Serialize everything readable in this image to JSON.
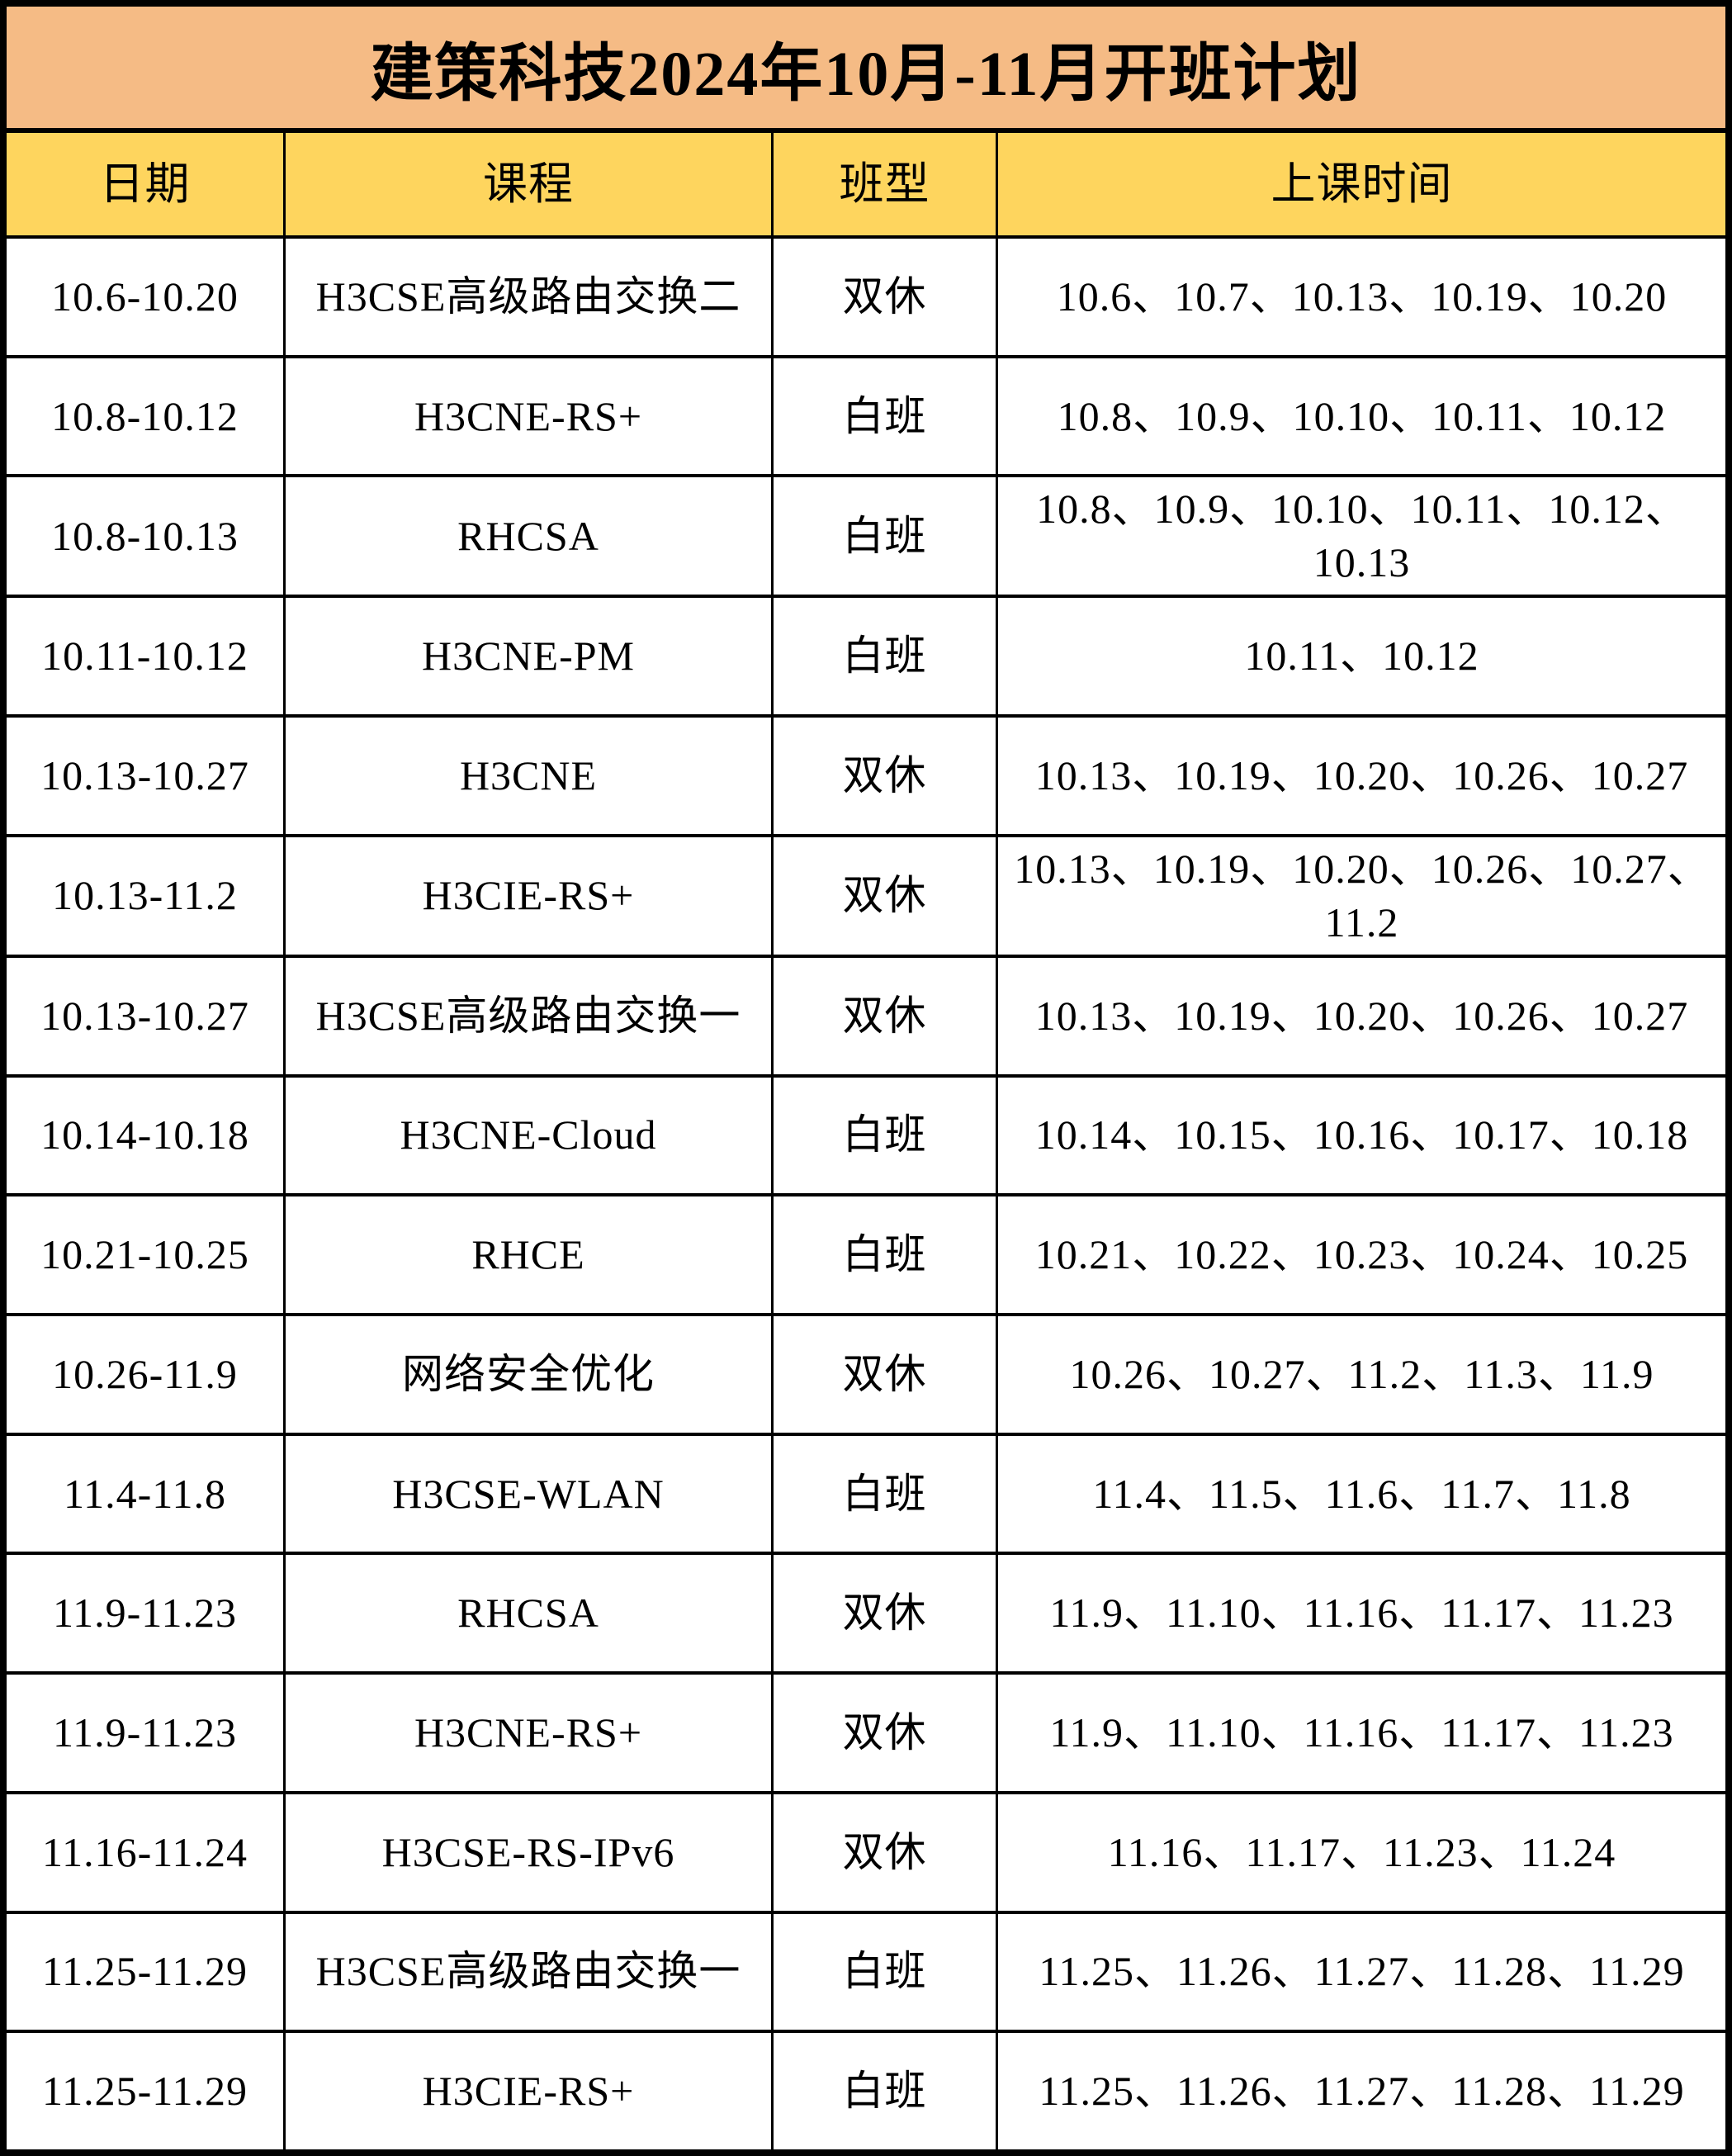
{
  "title": "建策科技2024年10月-11月开班计划",
  "columns": [
    "日期",
    "课程",
    "班型",
    "上课时间"
  ],
  "rows": [
    {
      "date": "10.6-10.20",
      "course": "H3CSE高级路由交换二",
      "type": "双休",
      "times": "10.6、10.7、10.13、10.19、10.20"
    },
    {
      "date": "10.8-10.12",
      "course": "H3CNE-RS+",
      "type": "白班",
      "times": "10.8、10.9、10.10、10.11、10.12"
    },
    {
      "date": "10.8-10.13",
      "course": "RHCSA",
      "type": "白班",
      "times": "10.8、10.9、10.10、10.11、10.12、10.13"
    },
    {
      "date": "10.11-10.12",
      "course": "H3CNE-PM",
      "type": "白班",
      "times": "10.11、10.12"
    },
    {
      "date": "10.13-10.27",
      "course": "H3CNE",
      "type": "双休",
      "times": "10.13、10.19、10.20、10.26、10.27"
    },
    {
      "date": "10.13-11.2",
      "course": "H3CIE-RS+",
      "type": "双休",
      "times": "10.13、10.19、10.20、10.26、10.27、11.2"
    },
    {
      "date": "10.13-10.27",
      "course": "H3CSE高级路由交换一",
      "type": "双休",
      "times": "10.13、10.19、10.20、10.26、10.27"
    },
    {
      "date": "10.14-10.18",
      "course": "H3CNE-Cloud",
      "type": "白班",
      "times": "10.14、10.15、10.16、10.17、10.18"
    },
    {
      "date": "10.21-10.25",
      "course": "RHCE",
      "type": "白班",
      "times": "10.21、10.22、10.23、10.24、10.25"
    },
    {
      "date": "10.26-11.9",
      "course": "网络安全优化",
      "type": "双休",
      "times": "10.26、10.27、11.2、11.3、11.9"
    },
    {
      "date": "11.4-11.8",
      "course": "H3CSE-WLAN",
      "type": "白班",
      "times": "11.4、11.5、11.6、11.7、11.8"
    },
    {
      "date": "11.9-11.23",
      "course": "RHCSA",
      "type": "双休",
      "times": "11.9、11.10、11.16、11.17、11.23"
    },
    {
      "date": "11.9-11.23",
      "course": "H3CNE-RS+",
      "type": "双休",
      "times": "11.9、11.10、11.16、11.17、11.23"
    },
    {
      "date": "11.16-11.24",
      "course": "H3CSE-RS-IPv6",
      "type": "双休",
      "times": "11.16、11.17、11.23、11.24"
    },
    {
      "date": "11.25-11.29",
      "course": "H3CSE高级路由交换一",
      "type": "白班",
      "times": "11.25、11.26、11.27、11.28、11.29"
    },
    {
      "date": "11.25-11.29",
      "course": "H3CIE-RS+",
      "type": "白班",
      "times": "11.25、11.26、11.27、11.28、11.29"
    }
  ],
  "colors": {
    "title_bg": "#F5BB85",
    "header_bg": "#FED55E",
    "border": "#000000"
  }
}
